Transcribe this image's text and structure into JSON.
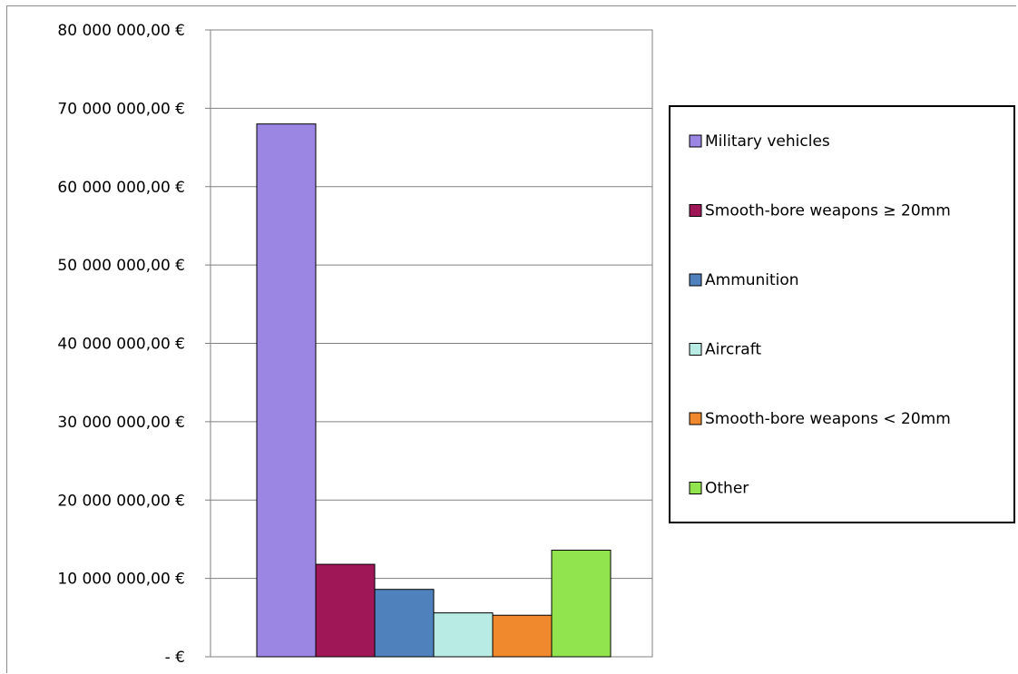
{
  "chart_data": {
    "type": "bar",
    "categories": [
      "Military vehicles",
      "Smooth-bore weapons ≥ 20mm",
      "Ammunition",
      "Aircraft",
      "Smooth-bore weapons < 20mm",
      "Other"
    ],
    "series": [
      {
        "name": "Military vehicles",
        "value": 68000000,
        "color": "#9b86e4"
      },
      {
        "name": "Smooth-bore weapons ≥ 20mm",
        "value": 11800000,
        "color": "#a01757"
      },
      {
        "name": "Ammunition",
        "value": 8600000,
        "color": "#4f81bd"
      },
      {
        "name": "Aircraft",
        "value": 5600000,
        "color": "#b8ebe4"
      },
      {
        "name": "Smooth-bore weapons < 20mm",
        "value": 5300000,
        "color": "#f0882e"
      },
      {
        "name": "Other",
        "value": 13600000,
        "color": "#92e44f"
      }
    ],
    "ylim": [
      0,
      80000000
    ],
    "y_ticks": [
      0,
      10000000,
      20000000,
      30000000,
      40000000,
      50000000,
      60000000,
      70000000,
      80000000
    ],
    "y_tick_labels": [
      "-  €",
      "10 000 000,00 €",
      "20 000 000,00 €",
      "30 000 000,00 €",
      "40 000 000,00 €",
      "50 000 000,00 €",
      "60 000 000,00 €",
      "70 000 000,00 €",
      "80 000 000,00 €"
    ],
    "grid": true,
    "legend_position": "right"
  }
}
